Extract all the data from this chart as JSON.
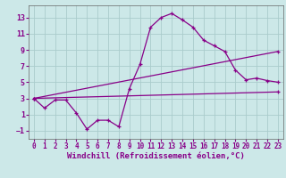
{
  "background_color": "#cce8e8",
  "grid_color": "#aacccc",
  "line_color": "#880088",
  "marker": "+",
  "xlabel": "Windchill (Refroidissement éolien,°C)",
  "xlabel_fontsize": 6.5,
  "xtick_fontsize": 5.5,
  "ytick_fontsize": 6,
  "ylim": [
    -2,
    14.5
  ],
  "xlim": [
    -0.5,
    23.5
  ],
  "yticks": [
    -1,
    1,
    3,
    5,
    7,
    9,
    11,
    13
  ],
  "xticks": [
    0,
    1,
    2,
    3,
    4,
    5,
    6,
    7,
    8,
    9,
    10,
    11,
    12,
    13,
    14,
    15,
    16,
    17,
    18,
    19,
    20,
    21,
    22,
    23
  ],
  "line1_x": [
    0,
    1,
    2,
    3,
    4,
    5,
    6,
    7,
    8,
    9,
    10,
    11,
    12,
    13,
    14,
    15,
    16,
    17,
    18,
    19,
    20,
    21,
    22,
    23
  ],
  "line1_y": [
    3.0,
    1.8,
    2.8,
    2.8,
    1.2,
    -0.8,
    0.3,
    0.3,
    -0.5,
    4.2,
    7.2,
    11.8,
    13.0,
    13.5,
    12.7,
    11.8,
    10.2,
    9.5,
    8.8,
    6.5,
    5.3,
    5.5,
    5.2,
    5.0
  ],
  "line2_x": [
    0,
    23
  ],
  "line2_y": [
    3.0,
    8.8
  ],
  "line3_x": [
    0,
    23
  ],
  "line3_y": [
    3.0,
    3.8
  ]
}
